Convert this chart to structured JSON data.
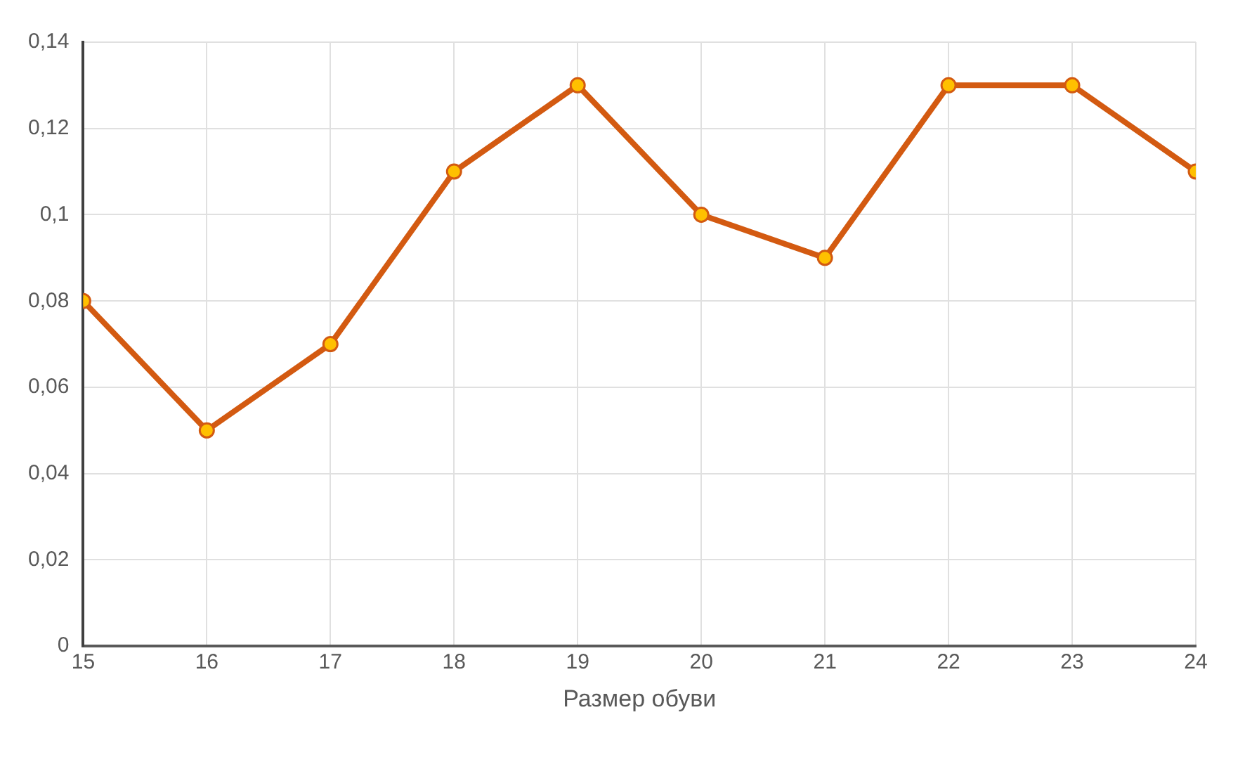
{
  "chart_data": {
    "type": "line",
    "xlabel": "Размер обуви",
    "x": [
      15,
      16,
      17,
      18,
      19,
      20,
      21,
      22,
      23,
      24
    ],
    "series": [
      {
        "color": "#d35a11",
        "values": [
          0.08,
          0.05,
          0.07,
          0.11,
          0.13,
          0.1,
          0.09,
          0.13,
          0.13,
          0.11
        ]
      }
    ],
    "xlim": [
      15,
      24
    ],
    "xticks": [
      15,
      16,
      17,
      18,
      19,
      20,
      21,
      22,
      23,
      24
    ],
    "ylim": [
      0,
      0.14
    ],
    "yticks": [
      0,
      {
        "value": 0.02,
        "label": "0,02"
      },
      {
        "value": 0.04,
        "label": "0,04"
      },
      {
        "value": 0.06,
        "label": "0,06"
      },
      {
        "value": 0.08,
        "label": "0,08"
      },
      {
        "value": 0.1,
        "label": "0,1"
      },
      {
        "value": 0.12,
        "label": "0,12"
      },
      {
        "value": 0.14,
        "label": "0,14"
      }
    ],
    "grid": true,
    "marker": "circle",
    "line_style": "solid",
    "legend": false
  }
}
